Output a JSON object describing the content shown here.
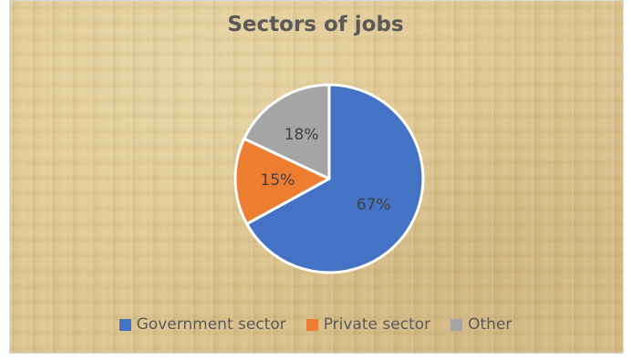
{
  "chart_data": {
    "type": "pie",
    "title": "Sectors of jobs",
    "categories": [
      "Government sector",
      "Private sector",
      "Other"
    ],
    "values": [
      67,
      15,
      18
    ],
    "labels": [
      "67%",
      "15%",
      "18%"
    ],
    "colors": [
      "#4472c4",
      "#ed7d31",
      "#a5a5a5"
    ],
    "legend_position": "bottom"
  }
}
